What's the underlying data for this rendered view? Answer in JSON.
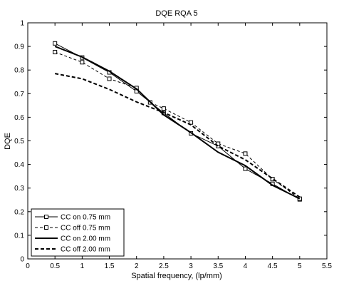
{
  "chart_data": {
    "type": "line",
    "title": "DQE RQA 5",
    "xlabel": "Spatial frequency, (lp/mm)",
    "ylabel": "DQE",
    "xlim": [
      0,
      5.5
    ],
    "ylim": [
      0,
      1
    ],
    "xticks": [
      "0",
      "0.5",
      "1",
      "1.5",
      "2",
      "2.5",
      "3",
      "3.5",
      "4",
      "4.5",
      "5",
      "5.5"
    ],
    "yticks": [
      "0",
      "0.1",
      "0.2",
      "0.3",
      "0.4",
      "0.5",
      "0.6",
      "0.7",
      "0.8",
      "0.9",
      "1"
    ],
    "grid": false,
    "legend_position": "bottom-left",
    "series": [
      {
        "name": "CC on 0.75 mm",
        "style": "solid",
        "marker": "square",
        "x": [
          0.5,
          1,
          1.5,
          2,
          2.5,
          3,
          3.5,
          4,
          4.5,
          5
        ],
        "y": [
          0.913,
          0.853,
          0.79,
          0.71,
          0.618,
          0.532,
          0.478,
          0.382,
          0.318,
          0.252
        ]
      },
      {
        "name": "CC off 0.75 mm",
        "style": "dashed",
        "marker": "square",
        "x": [
          0.5,
          1,
          1.5,
          2,
          2.25,
          2.5,
          3,
          3.5,
          4,
          4.5,
          5
        ],
        "y": [
          0.876,
          0.833,
          0.763,
          0.724,
          0.663,
          0.637,
          0.578,
          0.488,
          0.446,
          0.338,
          0.255
        ]
      },
      {
        "name": "CC on 2.00 mm",
        "style": "solid-thick",
        "marker": "none",
        "x": [
          0.5,
          1,
          1.5,
          2,
          2.5,
          3,
          3.5,
          4,
          4.5,
          5
        ],
        "y": [
          0.9,
          0.855,
          0.795,
          0.72,
          0.61,
          0.535,
          0.452,
          0.395,
          0.312,
          0.255
        ]
      },
      {
        "name": "CC off 2.00 mm",
        "style": "dashed-thick",
        "marker": "none",
        "x": [
          0.5,
          1,
          1.5,
          2,
          2.5,
          3,
          3.5,
          4,
          4.5,
          5
        ],
        "y": [
          0.785,
          0.763,
          0.718,
          0.665,
          0.62,
          0.568,
          0.478,
          0.42,
          0.34,
          0.262
        ]
      }
    ]
  }
}
